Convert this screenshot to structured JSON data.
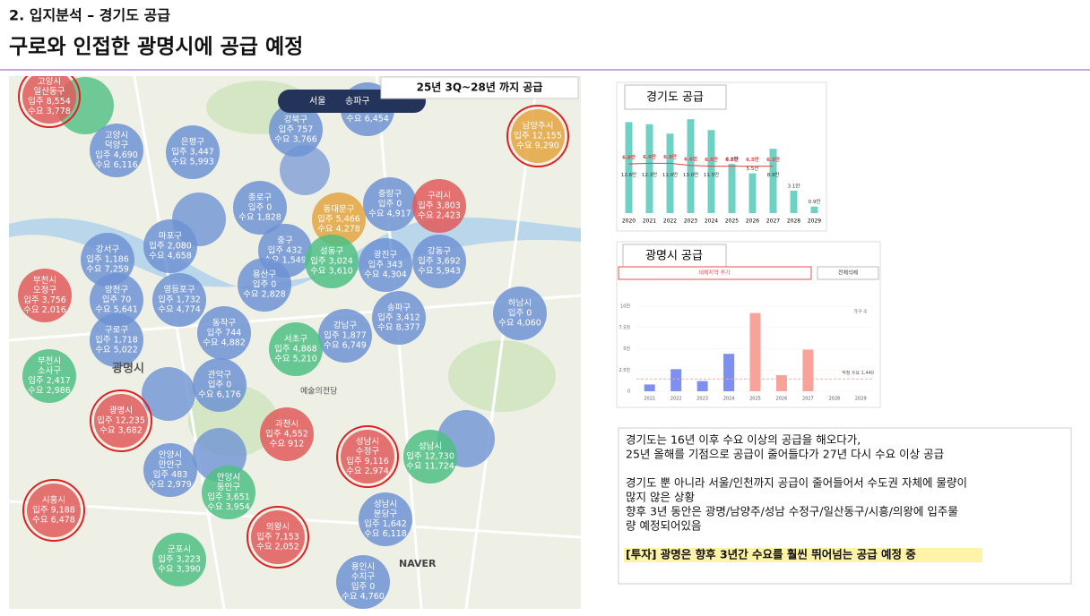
{
  "header": {
    "section": "2. 입지분석 – 경기도 공급",
    "title": "구로와 인접한 광명시에 공급 예정"
  },
  "map": {
    "banner": "25년 3Q~28년 까지 공급",
    "controls": [
      "서울",
      "송파구"
    ],
    "places": [
      "광명시",
      "예술의전당",
      "NAVER"
    ],
    "bubbles": [
      {
        "name": [
          "고양시",
          "일산동구"
        ],
        "supply": "입주 8,554",
        "demand": "수요 3,778",
        "color": "#e05a5a",
        "ring": true
      },
      {
        "name": [
          "고양시",
          "덕양구"
        ],
        "supply": "입주 4,690",
        "demand": "수요 6,116",
        "color": "#6f93d4"
      },
      {
        "name": [
          "은평구"
        ],
        "supply": "입주 3,447",
        "demand": "수요 5,993",
        "color": "#6f93d4"
      },
      {
        "name": [
          "강북구"
        ],
        "supply": "입주 757",
        "demand": "수요 3,766",
        "color": "#6f93d4"
      },
      {
        "name": [
          "도봉구"
        ],
        "supply": "입주 2,311",
        "demand": "수요 6,454",
        "color": "#6f93d4"
      },
      {
        "name": [
          "남양주시"
        ],
        "supply": "입주 12,155",
        "demand": "수요 9,290",
        "color": "#e3a53d",
        "ring": true
      },
      {
        "name": [
          "중랑구"
        ],
        "supply": "입주 0",
        "demand": "수요 4,917",
        "color": "#6f93d4"
      },
      {
        "name": [
          "구리시"
        ],
        "supply": "입주 3,803",
        "demand": "수요 2,423",
        "color": "#e05a5a"
      },
      {
        "name": [
          "동대문구"
        ],
        "supply": "입주 5,466",
        "demand": "수요 4,278",
        "color": "#e3a53d"
      },
      {
        "name": [
          "종로구"
        ],
        "supply": "입주 0",
        "demand": "수요 1,828",
        "color": "#6f93d4"
      },
      {
        "name": [
          "마포구"
        ],
        "supply": "입주 2,080",
        "demand": "수요 4,658",
        "color": "#6f93d4"
      },
      {
        "name": [
          "강서구"
        ],
        "supply": "입주 1,186",
        "demand": "수요 7,259",
        "color": "#6f93d4"
      },
      {
        "name": [
          "중구"
        ],
        "supply": "입주 432",
        "demand": "수요 1,549",
        "color": "#6f93d4"
      },
      {
        "name": [
          "성동구"
        ],
        "supply": "입주 3,024",
        "demand": "수요 3,610",
        "color": "#4fbf83"
      },
      {
        "name": [
          "광진구"
        ],
        "supply": "입주 343",
        "demand": "수요 4,304",
        "color": "#6f93d4"
      },
      {
        "name": [
          "강동구"
        ],
        "supply": "입주 3,692",
        "demand": "수요 5,943",
        "color": "#6f93d4"
      },
      {
        "name": [
          "부천시",
          "오정구"
        ],
        "supply": "입주 3,756",
        "demand": "수요 2,016",
        "color": "#e05a5a"
      },
      {
        "name": [
          "양천구"
        ],
        "supply": "입주 70",
        "demand": "수요 5,641",
        "color": "#6f93d4"
      },
      {
        "name": [
          "영등포구"
        ],
        "supply": "입주 1,732",
        "demand": "수요 4,774",
        "color": "#6f93d4"
      },
      {
        "name": [
          "용산구"
        ],
        "supply": "입주 0",
        "demand": "수요 2,828",
        "color": "#6f93d4"
      },
      {
        "name": [
          "송파구"
        ],
        "supply": "입주 3,412",
        "demand": "수요 8,377",
        "color": "#6f93d4"
      },
      {
        "name": [
          "하남시"
        ],
        "supply": "입주 0",
        "demand": "수요 4,060",
        "color": "#6f93d4"
      },
      {
        "name": [
          "구로구"
        ],
        "supply": "입주 1,718",
        "demand": "수요 5,022",
        "color": "#6f93d4"
      },
      {
        "name": [
          "동작구"
        ],
        "supply": "입주 744",
        "demand": "수요 4,882",
        "color": "#6f93d4"
      },
      {
        "name": [
          "강남구"
        ],
        "supply": "입주 1,877",
        "demand": "수요 6,749",
        "color": "#6f93d4"
      },
      {
        "name": [
          "서초구"
        ],
        "supply": "입주 4,868",
        "demand": "수요 5,210",
        "color": "#4fbf83"
      },
      {
        "name": [
          "부천시",
          "소사구"
        ],
        "supply": "입주 2,417",
        "demand": "수요 2,986",
        "color": "#4fbf83"
      },
      {
        "name": [
          "관악구"
        ],
        "supply": "입주 0",
        "demand": "수요 6,176",
        "color": "#6f93d4"
      },
      {
        "name": [
          "광명시"
        ],
        "supply": "입주 12,235",
        "demand": "수요 3,682",
        "color": "#e05a5a",
        "ring": true
      },
      {
        "name": [
          "과천시"
        ],
        "supply": "입주 4,552",
        "demand": "수요 912",
        "color": "#e05a5a"
      },
      {
        "name": [
          "성남시",
          "수정구"
        ],
        "supply": "입주 9,116",
        "demand": "수요 2,974",
        "color": "#e05a5a",
        "ring": true
      },
      {
        "name": [
          "성남시"
        ],
        "supply": "입주 12,730",
        "demand": "수요 11,724",
        "color": "#4fbf83"
      },
      {
        "name": [
          "안양시",
          "만안구"
        ],
        "supply": "입주 483",
        "demand": "수요 2,979",
        "color": "#6f93d4"
      },
      {
        "name": [
          "안양시",
          "동안구"
        ],
        "supply": "입주 3,651",
        "demand": "수요 3,954",
        "color": "#4fbf83"
      },
      {
        "name": [
          "시흥시"
        ],
        "supply": "입주 9,188",
        "demand": "수요 6,478",
        "color": "#e05a5a",
        "ring": true
      },
      {
        "name": [
          "의왕시"
        ],
        "supply": "입주 7,153",
        "demand": "수요 2,052",
        "color": "#e05a5a",
        "ring": true
      },
      {
        "name": [
          "성남시",
          "분당구"
        ],
        "supply": "입주 1,642",
        "demand": "수요 6,118",
        "color": "#6f93d4"
      },
      {
        "name": [
          "군포시"
        ],
        "supply": "입주 3,223",
        "demand": "수요 3,390",
        "color": "#4fbf83"
      },
      {
        "name": [
          "용인시",
          "수지구"
        ],
        "supply": "입주 0",
        "demand": "수요 4,760",
        "color": "#6f93d4"
      }
    ]
  },
  "chart_data": [
    {
      "type": "bar",
      "title": "경기도 공급",
      "categories": [
        "2020",
        "2021",
        "2022",
        "2023",
        "2024",
        "2025",
        "2026",
        "2027",
        "2028",
        "2029"
      ],
      "values": [
        12.6,
        12.3,
        11.0,
        13.0,
        11.5,
        6.8,
        5.5,
        8.9,
        3.1,
        0.9
      ],
      "value_labels": [
        "12.6만",
        "12.3만",
        "11.0만",
        "13.0만",
        "11.5만",
        "6.8만",
        "5.5만",
        "8.9만",
        "3.1만",
        "0.9만"
      ],
      "color": "#6fd0c4",
      "line": {
        "values": [
          6.8,
          6.9,
          6.9,
          6.6,
          6.5,
          6.5,
          6.5,
          6.5,
          null,
          null
        ],
        "value_labels": [
          "6.8만",
          "6.9만",
          "6.9만",
          "6.6만",
          "6.5만",
          "6.5만",
          "6.5만",
          "6.5만",
          null,
          null
        ],
        "color": "#e04040"
      },
      "ylim": [
        0,
        15
      ]
    },
    {
      "type": "bar",
      "title": "광명시 공급",
      "buttons": [
        "대체지역 추가",
        "전체삭제"
      ],
      "ylabel": "가구 수",
      "categories": [
        "2021",
        "2022",
        "2023",
        "2024",
        "2025",
        "2026",
        "2027",
        "2028",
        "2029"
      ],
      "values": [
        800,
        2600,
        1200,
        4400,
        9200,
        1900,
        4900,
        0,
        0
      ],
      "colors": [
        "#7f8ff0",
        "#7f8ff0",
        "#7f8ff0",
        "#7f8ff0",
        "#f7a39a",
        "#f7a39a",
        "#f7a39a",
        "#f7a39a",
        "#f7a39a"
      ],
      "ylim": [
        0,
        10000
      ],
      "yticks": [
        0,
        {
          "value": 2500,
          "label": "2.5천"
        },
        {
          "value": 5000,
          "label": "5천"
        },
        {
          "value": 7500,
          "label": "7.5천"
        },
        {
          "value": 10000,
          "label": "10천"
        }
      ],
      "reference": {
        "value": 1440,
        "label": "적정 수요 1,440",
        "color": "#f7a39a"
      }
    }
  ],
  "notes": {
    "paragraphs": [
      [
        "경기도는 16년 이후 수요 이상의 공급을 해오다가,",
        "25년 올해를 기점으로 공급이 줄어들다가 27년 다시 수요 이상 공급"
      ],
      [
        "경기도 뿐 아니라 서울/인천까지 공급이 줄어들어서 수도권 자체에 물량이",
        "많지 않은 상황",
        "향후 3년 동안은 광명/남양주/성남 수정구/일산동구/시흥/의왕에 입주물",
        "량 예정되어있음"
      ]
    ],
    "highlight": "[투자] 광명은 향후 3년간 수요를 훨씬 뛰어넘는 공급 예정 중"
  }
}
